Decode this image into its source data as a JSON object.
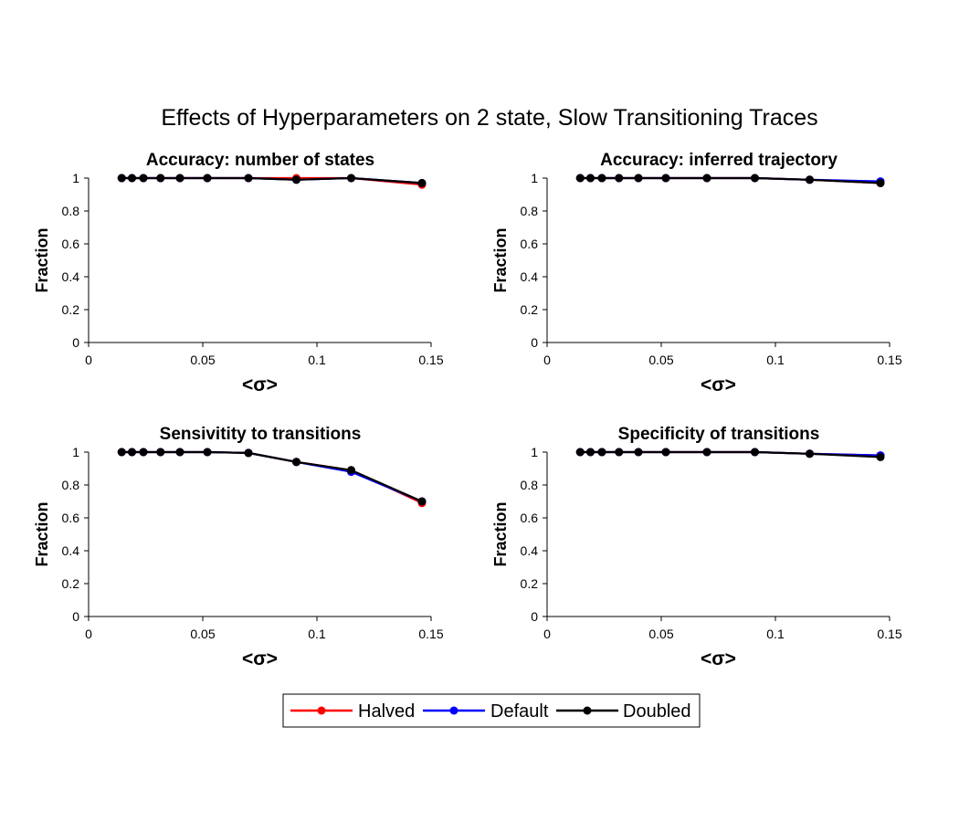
{
  "title": "Effects of Hyperparameters on 2 state, Slow Transitioning Traces",
  "legend": [
    {
      "name": "Halved",
      "color": "#ff0000"
    },
    {
      "name": "Default",
      "color": "#0000ff"
    },
    {
      "name": "Doubled",
      "color": "#000000"
    }
  ],
  "chart_data": [
    {
      "type": "line",
      "title": "Accuracy: number of states",
      "xlabel": "<σ>",
      "ylabel": "Fraction",
      "xlim": [
        0,
        0.15
      ],
      "ylim": [
        0,
        1
      ],
      "xticks": [
        "0",
        "0.05",
        "0.1",
        "0.15"
      ],
      "yticks": [
        "0",
        "0.2",
        "0.4",
        "0.6",
        "0.8",
        "1"
      ],
      "grid": false,
      "x": [
        0.0145,
        0.019,
        0.024,
        0.0315,
        0.04,
        0.052,
        0.07,
        0.091,
        0.115,
        0.146
      ],
      "series": [
        {
          "name": "Halved",
          "color": "#ff0000",
          "values": [
            1,
            1,
            1,
            1,
            1,
            1,
            1,
            1,
            1,
            0.96
          ]
        },
        {
          "name": "Default",
          "color": "#0000ff",
          "values": [
            1,
            1,
            1,
            1,
            1,
            1,
            1,
            0.99,
            1,
            0.97
          ]
        },
        {
          "name": "Doubled",
          "color": "#000000",
          "values": [
            1,
            1,
            1,
            1,
            1,
            1,
            1,
            0.99,
            1,
            0.97
          ]
        }
      ]
    },
    {
      "type": "line",
      "title": "Accuracy: inferred trajectory",
      "xlabel": "<σ>",
      "ylabel": "Fraction",
      "xlim": [
        0,
        0.15
      ],
      "ylim": [
        0,
        1
      ],
      "xticks": [
        "0",
        "0.05",
        "0.1",
        "0.15"
      ],
      "yticks": [
        "0",
        "0.2",
        "0.4",
        "0.6",
        "0.8",
        "1"
      ],
      "grid": false,
      "x": [
        0.0145,
        0.019,
        0.024,
        0.0315,
        0.04,
        0.052,
        0.07,
        0.091,
        0.115,
        0.146
      ],
      "series": [
        {
          "name": "Halved",
          "color": "#ff0000",
          "values": [
            1,
            1,
            1,
            1,
            1,
            1,
            1,
            1,
            0.99,
            0.97
          ]
        },
        {
          "name": "Default",
          "color": "#0000ff",
          "values": [
            1,
            1,
            1,
            1,
            1,
            1,
            1,
            1,
            0.99,
            0.98
          ]
        },
        {
          "name": "Doubled",
          "color": "#000000",
          "values": [
            1,
            1,
            1,
            1,
            1,
            1,
            1,
            1,
            0.99,
            0.97
          ]
        }
      ]
    },
    {
      "type": "line",
      "title": "Sensivitity to transitions",
      "xlabel": "<σ>",
      "ylabel": "Fraction",
      "xlim": [
        0,
        0.15
      ],
      "ylim": [
        0,
        1
      ],
      "xticks": [
        "0",
        "0.05",
        "0.1",
        "0.15"
      ],
      "yticks": [
        "0",
        "0.2",
        "0.4",
        "0.6",
        "0.8",
        "1"
      ],
      "grid": false,
      "x": [
        0.0145,
        0.019,
        0.024,
        0.0315,
        0.04,
        0.052,
        0.07,
        0.091,
        0.115,
        0.146
      ],
      "series": [
        {
          "name": "Halved",
          "color": "#ff0000",
          "values": [
            1,
            1,
            1,
            1,
            1,
            1,
            0.995,
            0.94,
            0.89,
            0.69
          ]
        },
        {
          "name": "Default",
          "color": "#0000ff",
          "values": [
            1,
            1,
            1,
            1,
            1,
            1,
            0.995,
            0.94,
            0.88,
            0.7
          ]
        },
        {
          "name": "Doubled",
          "color": "#000000",
          "values": [
            1,
            1,
            1,
            1,
            1,
            1,
            0.995,
            0.94,
            0.89,
            0.7
          ]
        }
      ]
    },
    {
      "type": "line",
      "title": "Specificity of transitions",
      "xlabel": "<σ>",
      "ylabel": "Fraction",
      "xlim": [
        0,
        0.15
      ],
      "ylim": [
        0,
        1
      ],
      "xticks": [
        "0",
        "0.05",
        "0.1",
        "0.15"
      ],
      "yticks": [
        "0",
        "0.2",
        "0.4",
        "0.6",
        "0.8",
        "1"
      ],
      "grid": false,
      "x": [
        0.0145,
        0.019,
        0.024,
        0.0315,
        0.04,
        0.052,
        0.07,
        0.091,
        0.115,
        0.146
      ],
      "series": [
        {
          "name": "Halved",
          "color": "#ff0000",
          "values": [
            1,
            1,
            1,
            1,
            1,
            1,
            1,
            1,
            0.99,
            0.98
          ]
        },
        {
          "name": "Default",
          "color": "#0000ff",
          "values": [
            1,
            1,
            1,
            1,
            1,
            1,
            1,
            1,
            0.99,
            0.98
          ]
        },
        {
          "name": "Doubled",
          "color": "#000000",
          "values": [
            1,
            1,
            1,
            1,
            1,
            1,
            1,
            1,
            0.99,
            0.97
          ]
        }
      ]
    }
  ]
}
